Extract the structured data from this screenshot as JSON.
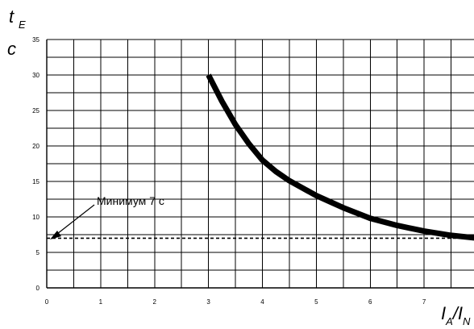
{
  "chart_data": {
    "type": "line",
    "ylabel": {
      "main": "t",
      "sub": "E",
      "unit": "c"
    },
    "xlabel": {
      "a": "I",
      "a_sub": "A",
      "sep": "/",
      "b": "I",
      "b_sub": "N"
    },
    "xlim": [
      0,
      8
    ],
    "ylim": [
      0,
      35
    ],
    "xticks": [
      0,
      1,
      2,
      3,
      4,
      5,
      6,
      7
    ],
    "yticks": [
      0,
      5,
      10,
      15,
      20,
      25,
      30,
      35
    ],
    "grid": true,
    "series": [
      {
        "x": [
          3.0,
          3.25,
          3.5,
          3.75,
          4.0,
          4.25,
          4.5,
          5.0,
          5.5,
          6.0,
          6.5,
          7.0,
          7.5,
          8.0
        ],
        "y": [
          30.0,
          26.3,
          23.0,
          20.3,
          18.0,
          16.4,
          15.1,
          13.0,
          11.3,
          9.8,
          8.8,
          8.0,
          7.4,
          7.0
        ]
      }
    ],
    "threshold": {
      "y": 7,
      "label": "Минимум 7 с"
    }
  }
}
